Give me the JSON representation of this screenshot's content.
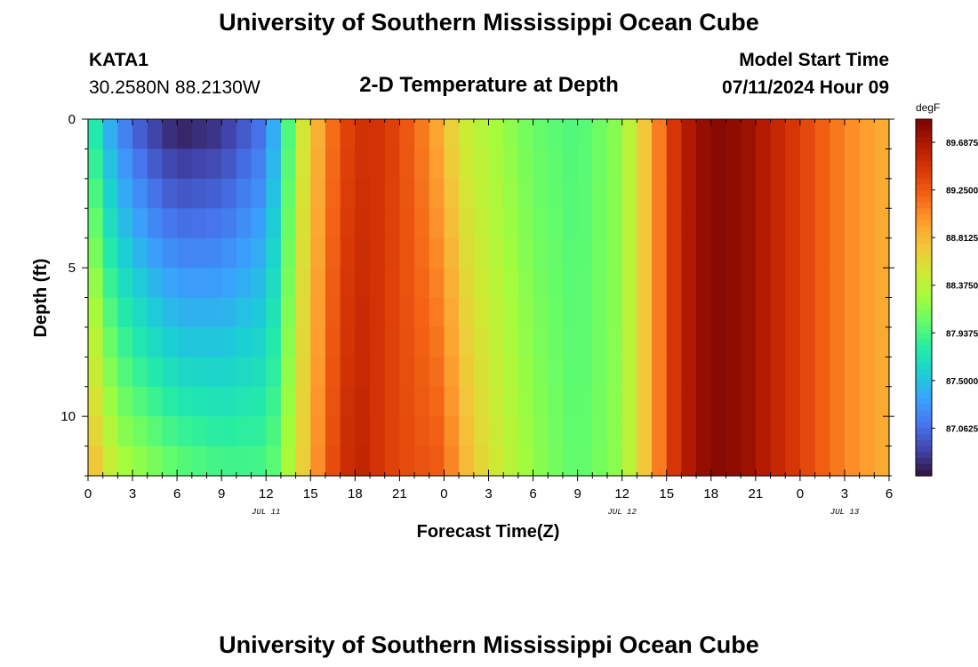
{
  "header": {
    "title": "University of Southern Mississippi Ocean Cube",
    "station": "KATA1",
    "coords": "30.2580N  88.2130W",
    "plot_title": "2-D Temperature at Depth",
    "model_start_label": "Model Start Time",
    "model_start_value": "07/11/2024 Hour 09",
    "footer_title": "University of Southern Mississippi Ocean Cube"
  },
  "colors": {
    "colormap": [
      "#30123b",
      "#4145ab",
      "#4675ed",
      "#39a2fc",
      "#1bcfd4",
      "#24eca6",
      "#61fc6c",
      "#a4fc3b",
      "#d1e834",
      "#f3c63a",
      "#fe9b2d",
      "#f36315",
      "#d93806",
      "#b11901",
      "#7a0402"
    ]
  },
  "chart_data": {
    "type": "heatmap",
    "title": "2-D Temperature at Depth",
    "xlabel": "Forecast Time(Z)",
    "ylabel": "Depth (ft)",
    "x_range_hours": [
      0,
      54
    ],
    "y_range_ft": [
      0,
      12
    ],
    "x_tick_labels": [
      "0",
      "3",
      "6",
      "9",
      "12",
      "15",
      "18",
      "21",
      "0",
      "3",
      "6",
      "9",
      "12",
      "15",
      "18",
      "21",
      "0",
      "3",
      "6"
    ],
    "y_tick_labels": [
      "0",
      "5",
      "10"
    ],
    "y_tick_values": [
      0,
      5,
      10
    ],
    "date_labels": [
      {
        "label": "JUL 11",
        "hour": 12
      },
      {
        "label": "JUL 12",
        "hour": 36
      },
      {
        "label": "JUL 13",
        "hour": 51
      }
    ],
    "colorbar": {
      "unit": "degF",
      "min": 86.625,
      "max": 89.9,
      "tick_labels": [
        "89.6875",
        "89.2500",
        "88.8125",
        "88.3750",
        "87.9375",
        "87.5000",
        "87.0625"
      ],
      "tick_values": [
        89.6875,
        89.25,
        88.8125,
        88.375,
        87.9375,
        87.5,
        87.0625
      ]
    },
    "temperature_profile_hours": [
      0,
      1,
      2,
      4,
      6,
      9,
      12,
      13,
      14,
      15,
      16,
      17,
      18,
      19,
      20,
      22,
      24,
      25,
      27,
      30,
      33,
      36,
      37,
      38,
      39,
      40,
      42,
      44,
      48,
      51,
      54
    ],
    "temperature_surface_degF": [
      87.95,
      87.5,
      87.2,
      86.85,
      86.65,
      86.75,
      87.1,
      87.6,
      88.3,
      88.7,
      89.0,
      89.3,
      89.45,
      89.5,
      89.45,
      89.2,
      88.8,
      88.5,
      88.3,
      88.05,
      87.95,
      88.2,
      88.55,
      88.9,
      89.3,
      89.6,
      89.85,
      89.8,
      89.4,
      89.05,
      88.85
    ],
    "temperature_bottom_degF": [
      88.9,
      88.6,
      88.35,
      88.2,
      88.05,
      87.95,
      87.95,
      88.1,
      88.5,
      88.85,
      89.2,
      89.45,
      89.6,
      89.55,
      89.4,
      89.3,
      89.25,
      88.9,
      88.55,
      88.2,
      88.0,
      88.2,
      88.55,
      88.9,
      89.3,
      89.6,
      89.85,
      89.8,
      89.4,
      89.05,
      88.85
    ]
  }
}
